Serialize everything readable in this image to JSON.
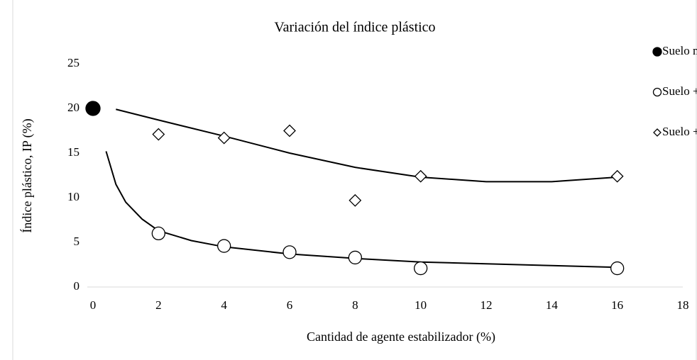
{
  "chart_data": {
    "type": "scatter",
    "title": "Variación del índice plástico",
    "x_label": "Cantidad de agente estabilizador (%)",
    "y_label": "Índice plástico, IP (%)",
    "xlim": [
      0,
      18
    ],
    "xticks": [
      0,
      2,
      4,
      6,
      8,
      10,
      12,
      14,
      16,
      18
    ],
    "ylim": [
      0,
      25
    ],
    "yticks": [
      0,
      5,
      10,
      15,
      20,
      25
    ],
    "legend": "right",
    "series": [
      {
        "name": "Suelo natural",
        "color": "#000000",
        "marker": "circle-filled",
        "x": [
          0
        ],
        "values": [
          20
        ]
      },
      {
        "name": "Suelo + NaCl",
        "color": "#000000",
        "marker": "circle-open",
        "x": [
          2,
          4,
          6,
          8,
          10,
          16
        ],
        "values": [
          6.0,
          4.6,
          3.9,
          3.3,
          2.1,
          2.1
        ]
      },
      {
        "name": "Suelo + CaO",
        "color": "#000000",
        "marker": "diamond-open",
        "x": [
          2,
          4,
          6,
          8,
          10,
          16
        ],
        "values": [
          17.1,
          16.7,
          17.5,
          9.7,
          12.4,
          12.4
        ]
      }
    ],
    "trendlines": [
      {
        "color": "#000000",
        "x": [
          0.4,
          0.7,
          1,
          1.5,
          2,
          3,
          4,
          6,
          8,
          10,
          12,
          14,
          16
        ],
        "values": [
          15.2,
          11.5,
          9.5,
          7.6,
          6.3,
          5.2,
          4.5,
          3.7,
          3.2,
          2.8,
          2.6,
          2.4,
          2.2
        ]
      },
      {
        "color": "#000000",
        "x": [
          0.7,
          2,
          4,
          6,
          8,
          10,
          12,
          14,
          16
        ],
        "values": [
          19.9,
          18.7,
          16.9,
          15.0,
          13.4,
          12.3,
          11.8,
          11.8,
          12.3
        ]
      }
    ]
  }
}
